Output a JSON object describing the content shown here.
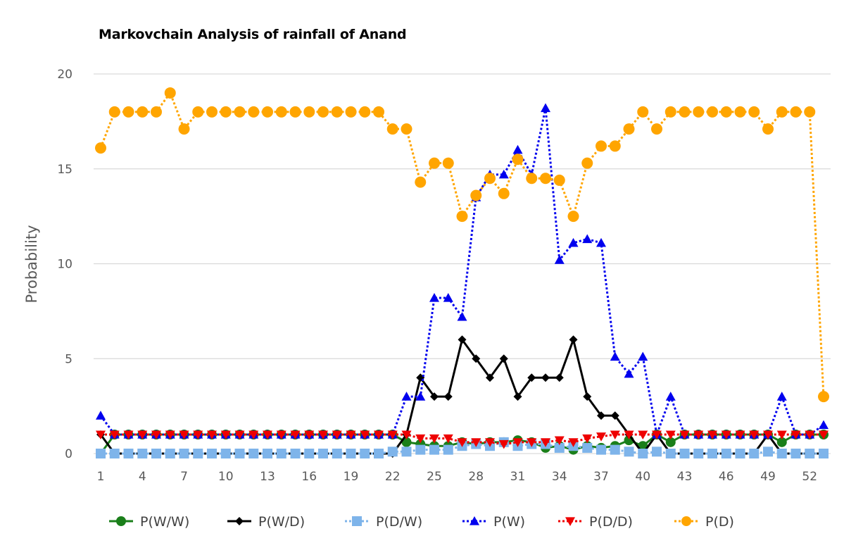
{
  "chart_data": {
    "type": "line",
    "title": "Markovchain Analysis of rainfall of Anand",
    "xlabel": "",
    "ylabel": "Probability",
    "ylim": [
      0,
      20
    ],
    "yticks": [
      "0",
      "5",
      "10",
      "15",
      "20"
    ],
    "xlim": [
      1,
      53
    ],
    "xticks": [
      "1",
      "4",
      "7",
      "10",
      "13",
      "16",
      "19",
      "22",
      "25",
      "28",
      "31",
      "34",
      "37",
      "40",
      "43",
      "46",
      "49",
      "52"
    ],
    "x": [
      1,
      2,
      3,
      4,
      5,
      6,
      7,
      8,
      9,
      10,
      11,
      12,
      13,
      14,
      15,
      16,
      17,
      18,
      19,
      20,
      21,
      22,
      23,
      24,
      25,
      26,
      27,
      28,
      29,
      30,
      31,
      32,
      33,
      34,
      35,
      36,
      37,
      38,
      39,
      40,
      41,
      42,
      43,
      44,
      45,
      46,
      47,
      48,
      49,
      50,
      51,
      52,
      53
    ],
    "grid": true,
    "legend_position": "bottom",
    "series": [
      {
        "name": "P(W/W)",
        "color": "#1a7f1a",
        "dash": "solid",
        "marker": "circle",
        "values": [
          0,
          1,
          1,
          1,
          1,
          1,
          1,
          1,
          1,
          1,
          1,
          1,
          1,
          1,
          1,
          1,
          1,
          1,
          1,
          1,
          1,
          1,
          0.6,
          0.5,
          0.4,
          0.4,
          0.6,
          0.5,
          0.6,
          0.6,
          0.7,
          0.6,
          0.3,
          0.4,
          0.2,
          0.4,
          0.3,
          0.4,
          0.7,
          0.4,
          1,
          0.6,
          1,
          1,
          1,
          1,
          1,
          1,
          1,
          0.6,
          1,
          1,
          1
        ]
      },
      {
        "name": "P(W/D)",
        "color": "#000000",
        "dash": "solid",
        "marker": "diamond",
        "values": [
          1,
          0,
          0,
          0,
          0,
          0,
          0,
          0,
          0,
          0,
          0,
          0,
          0,
          0,
          0,
          0,
          0,
          0,
          0,
          0,
          0,
          0,
          1,
          4,
          3,
          3,
          6,
          5,
          4,
          5,
          3,
          4,
          4,
          4,
          6,
          3,
          2,
          2,
          1,
          0,
          1,
          0,
          0,
          0,
          0,
          0,
          0,
          0,
          1,
          0,
          0,
          0,
          0
        ]
      },
      {
        "name": "P(D/W)",
        "color": "#7eb4ea",
        "dash": "dotted",
        "marker": "square",
        "values": [
          0,
          0,
          0,
          0,
          0,
          0,
          0,
          0,
          0,
          0,
          0,
          0,
          0,
          0,
          0,
          0,
          0,
          0,
          0,
          0,
          0,
          0.1,
          0.1,
          0.2,
          0.2,
          0.2,
          0.4,
          0.5,
          0.4,
          0.6,
          0.4,
          0.5,
          0.5,
          0.3,
          0.4,
          0.3,
          0.2,
          0.2,
          0.1,
          0,
          0.1,
          0,
          0,
          0,
          0,
          0,
          0,
          0,
          0.1,
          0,
          0,
          0,
          0
        ]
      },
      {
        "name": "P(W)",
        "color": "#0000ee",
        "dash": "dotted",
        "marker": "triangle-up",
        "values": [
          2,
          1,
          1,
          1,
          1,
          1,
          1,
          1,
          1,
          1,
          1,
          1,
          1,
          1,
          1,
          1,
          1,
          1,
          1,
          1,
          1,
          1,
          3,
          3,
          8.2,
          8.2,
          7.2,
          13.5,
          14.7,
          14.7,
          16,
          14.7,
          18.2,
          10.2,
          11.1,
          11.3,
          11.1,
          5.1,
          4.2,
          5.1,
          1,
          3,
          1,
          1,
          1,
          1,
          1,
          1,
          1,
          3,
          1,
          1,
          1.5
        ]
      },
      {
        "name": "P(D/D)",
        "color": "#ee0000",
        "dash": "dotted",
        "marker": "triangle-down",
        "values": [
          1,
          1,
          1,
          1,
          1,
          1,
          1,
          1,
          1,
          1,
          1,
          1,
          1,
          1,
          1,
          1,
          1,
          1,
          1,
          1,
          1,
          1,
          1,
          0.8,
          0.8,
          0.8,
          0.6,
          0.6,
          0.6,
          0.5,
          0.6,
          0.6,
          0.6,
          0.7,
          0.6,
          0.8,
          0.9,
          1,
          1,
          1,
          1,
          1,
          1,
          1,
          1,
          1,
          1,
          1,
          1,
          1,
          1,
          1,
          1
        ]
      },
      {
        "name": "P(D)",
        "color": "#ffa500",
        "dash": "dotted",
        "marker": "circle",
        "values": [
          16.1,
          18,
          18,
          18,
          18,
          19,
          17.1,
          18,
          18,
          18,
          18,
          18,
          18,
          18,
          18,
          18,
          18,
          18,
          18,
          18,
          18,
          17.1,
          17.1,
          14.3,
          15.3,
          15.3,
          12.5,
          13.6,
          14.5,
          13.7,
          15.5,
          14.5,
          14.5,
          14.4,
          12.5,
          15.3,
          16.2,
          16.2,
          17.1,
          18,
          17.1,
          18,
          18,
          18,
          18,
          18,
          18,
          18,
          17.1,
          18,
          18,
          18,
          3
        ]
      }
    ]
  }
}
